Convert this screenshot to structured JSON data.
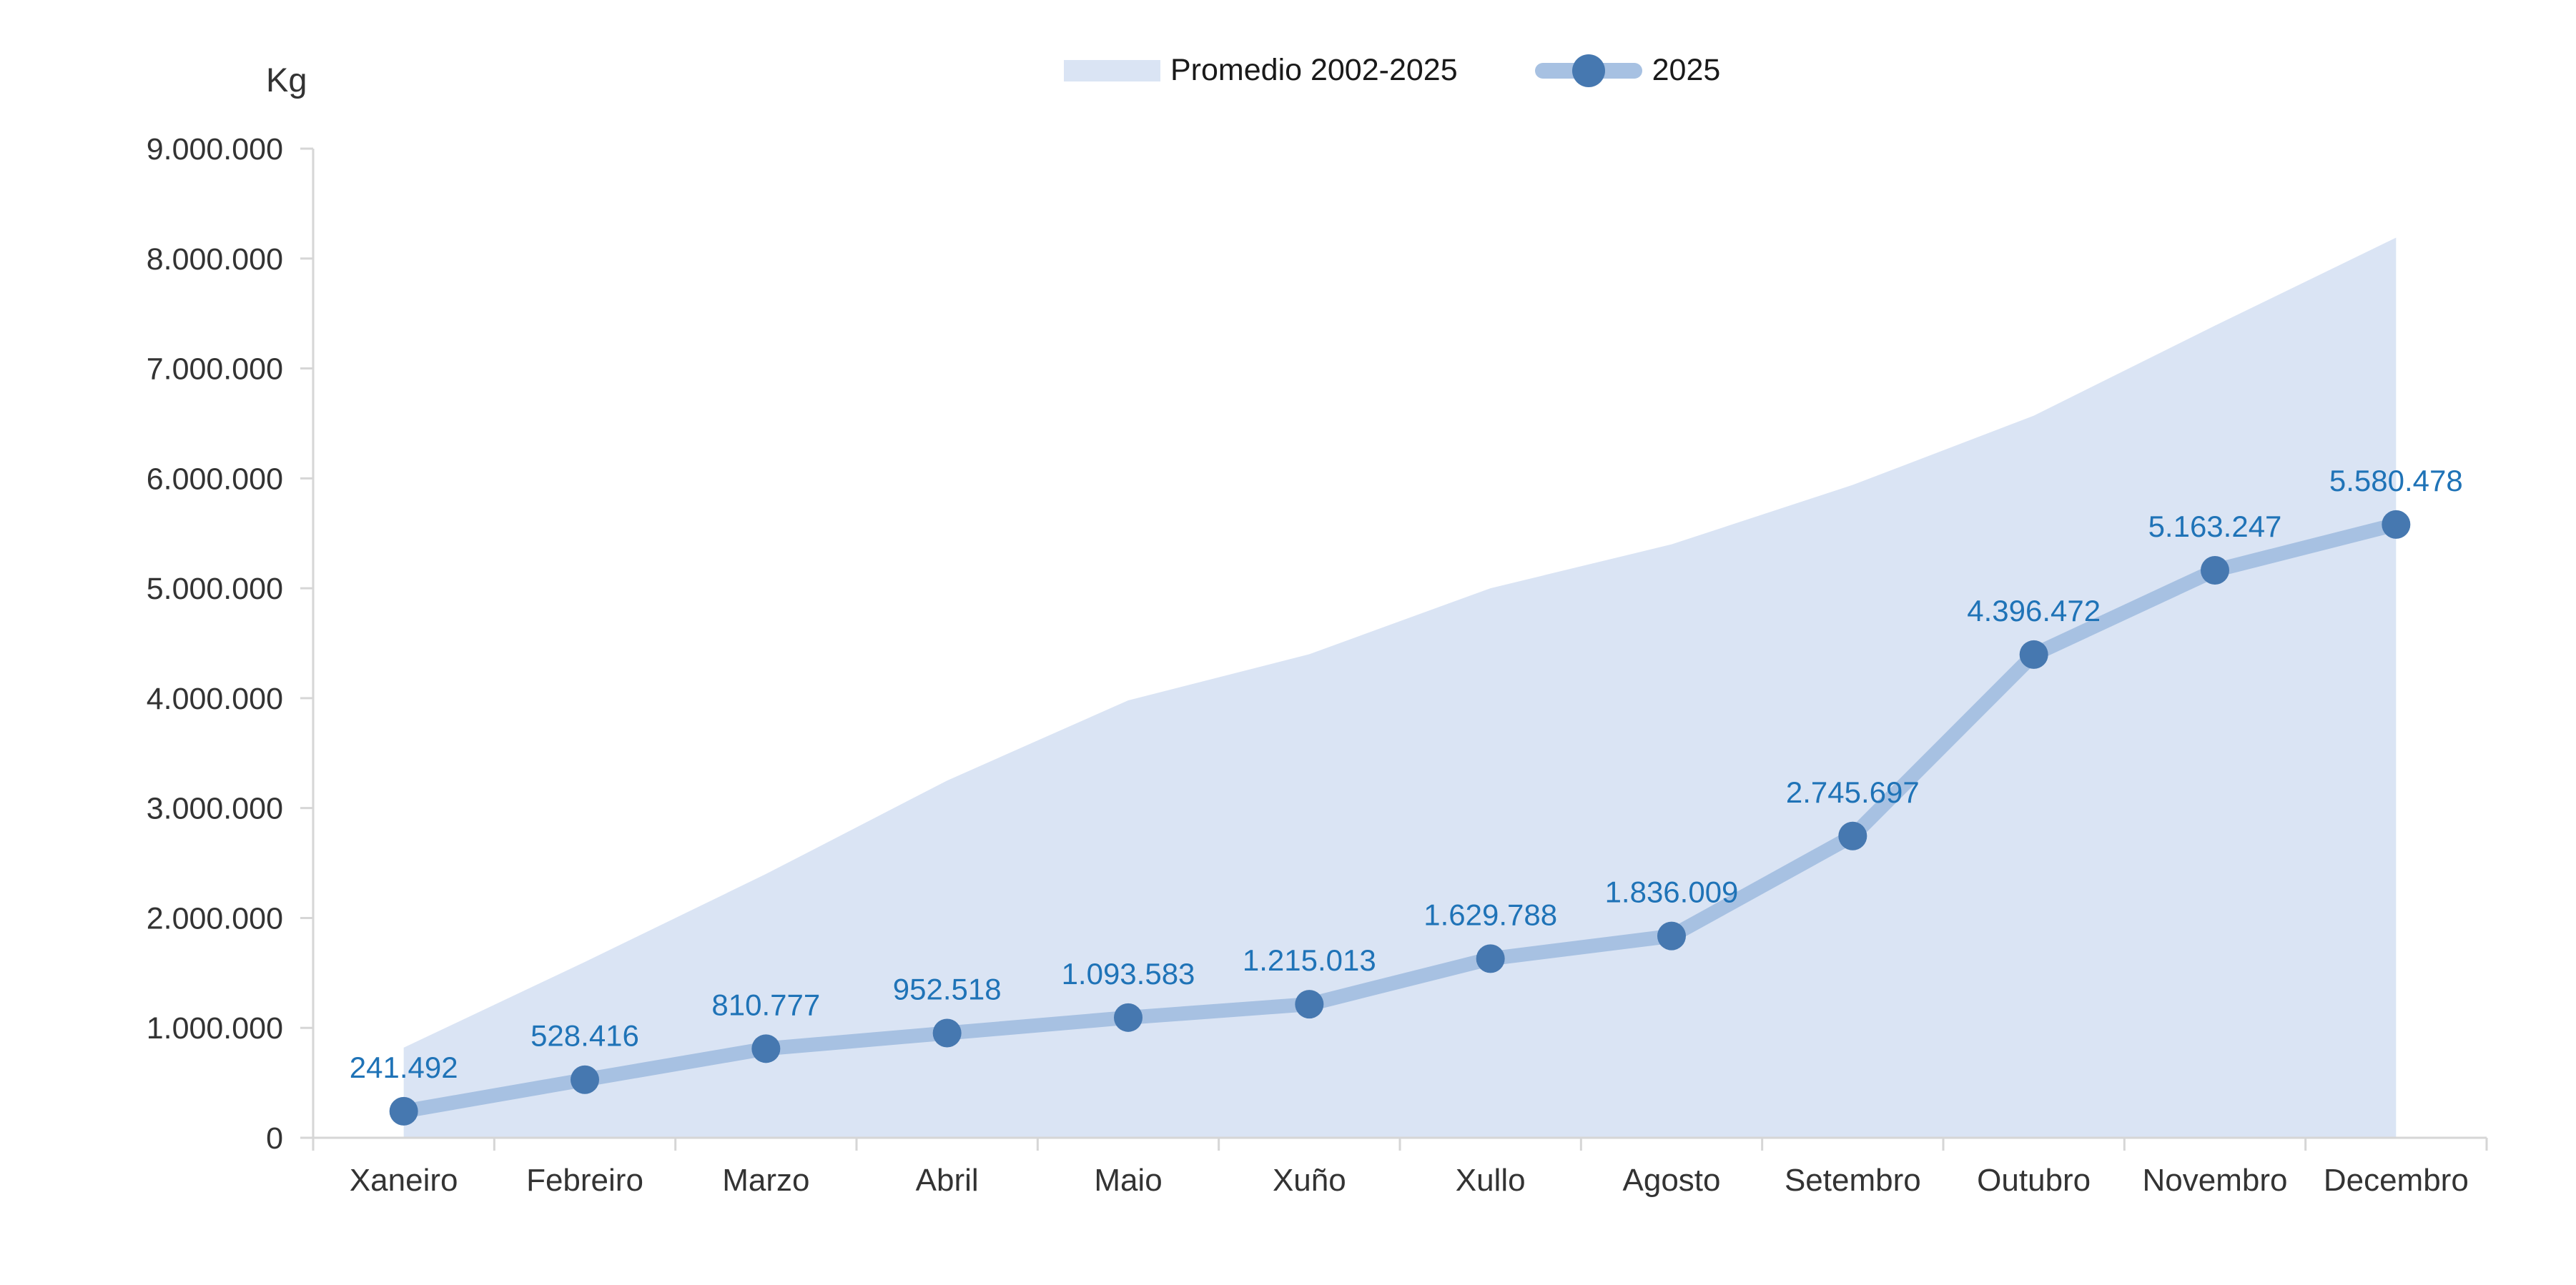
{
  "chart_data": {
    "type": "area",
    "subtype": "area + line combo",
    "title": "",
    "y_axis": {
      "title": "Kg",
      "min": 0,
      "max": 9000000,
      "tick_interval": 1000000,
      "tick_labels": [
        "0",
        "1.000.000",
        "2.000.000",
        "3.000.000",
        "4.000.000",
        "5.000.000",
        "6.000.000",
        "7.000.000",
        "8.000.000",
        "9.000.000"
      ]
    },
    "categories": [
      "Xaneiro",
      "Febreiro",
      "Marzo",
      "Abril",
      "Maio",
      "Xuño",
      "Xullo",
      "Agosto",
      "Setembro",
      "Outubro",
      "Novembro",
      "Decembro"
    ],
    "legend_position": "top",
    "grid": "off",
    "series": [
      {
        "name": "Promedio 2002-2025",
        "type": "area",
        "color": "#dae4f4",
        "values_estimated_from_pixels": true,
        "values": [
          820000,
          1600000,
          2400000,
          3250000,
          3980000,
          4400000,
          5000000,
          5400000,
          5940000,
          6570000,
          7390000,
          8190000
        ]
      },
      {
        "name": "2025",
        "type": "line",
        "color": "#a7c1e2",
        "marker_color": "#4678b0",
        "label_color": "#1f73b7",
        "values": [
          241492,
          528416,
          810777,
          952518,
          1093583,
          1215013,
          1629788,
          1836009,
          2745697,
          4396472,
          5163247,
          5580478
        ],
        "labels": [
          "241.492",
          "528.416",
          "810.777",
          "952.518",
          "1.093.583",
          "1.215.013",
          "1.629.788",
          "1.836.009",
          "2.745.697",
          "4.396.472",
          "5.163.247",
          "5.580.478"
        ]
      }
    ],
    "axis_color": "#d6d6d6",
    "text_color": "#333333"
  }
}
